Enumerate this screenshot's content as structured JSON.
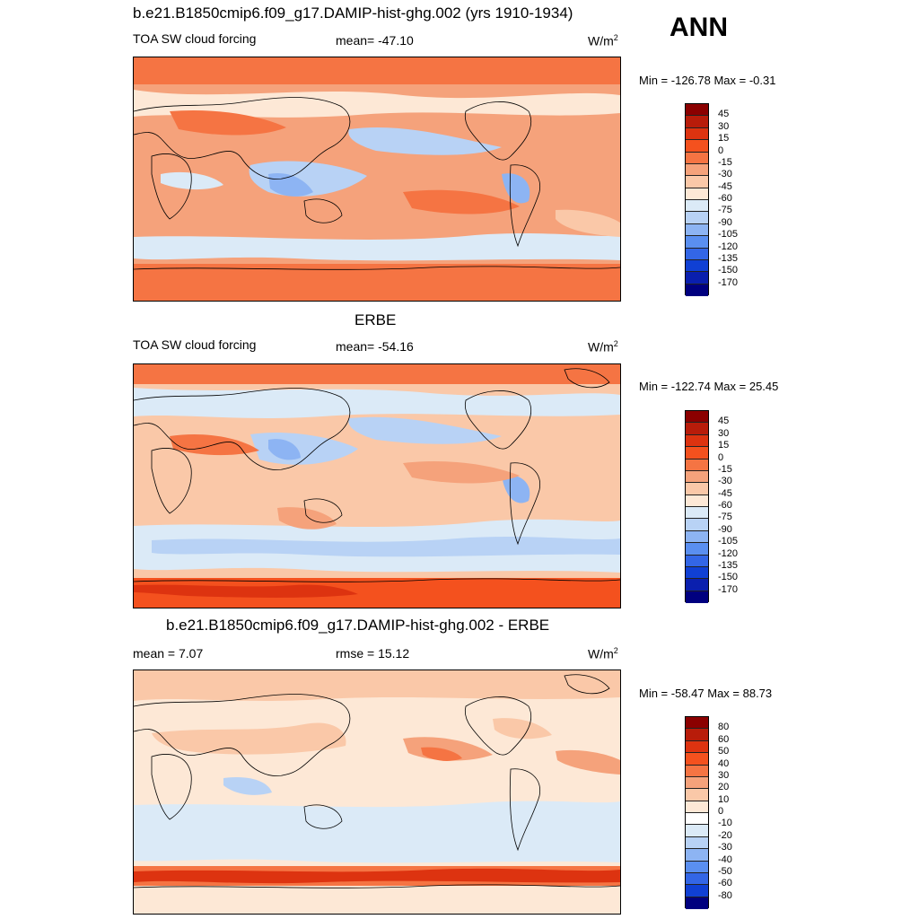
{
  "season": "ANN",
  "panels": [
    {
      "title": "b.e21.B1850cmip6.f09_g17.DAMIP-hist-ghg.002 (yrs 1910-1934)",
      "left": "TOA SW cloud forcing",
      "center": "mean= -47.10",
      "units": "W/m",
      "units_sup": "2",
      "minmax": "Min = -126.78 Max =  -0.31",
      "labels": [
        "45",
        "30",
        "15",
        "0",
        "-15",
        "-30",
        "-45",
        "-60",
        "-75",
        "-90",
        "-105",
        "-120",
        "-135",
        "-150",
        "-170"
      ],
      "colors": [
        "#8b0000",
        "#b81c0a",
        "#dd3310",
        "#f4511e",
        "#f57443",
        "#f5a27b",
        "#fac8a8",
        "#fde8d6",
        "#dbeaf7",
        "#b8d2f5",
        "#8db4f3",
        "#5a8ff0",
        "#3366e6",
        "#1040d4",
        "#0a1fae",
        "#00007f"
      ]
    },
    {
      "title": "ERBE",
      "left": "TOA SW cloud forcing",
      "center": "mean= -54.16",
      "units": "W/m",
      "units_sup": "2",
      "minmax": "Min = -122.74 Max =  25.45",
      "labels": [
        "45",
        "30",
        "15",
        "0",
        "-15",
        "-30",
        "-45",
        "-60",
        "-75",
        "-90",
        "-105",
        "-120",
        "-135",
        "-150",
        "-170"
      ],
      "colors": [
        "#8b0000",
        "#b81c0a",
        "#dd3310",
        "#f4511e",
        "#f57443",
        "#f5a27b",
        "#fac8a8",
        "#fde8d6",
        "#dbeaf7",
        "#b8d2f5",
        "#8db4f3",
        "#5a8ff0",
        "#3366e6",
        "#1040d4",
        "#0a1fae",
        "#00007f"
      ]
    },
    {
      "title": "b.e21.B1850cmip6.f09_g17.DAMIP-hist-ghg.002 - ERBE",
      "left": "mean =   7.07",
      "center": "rmse =  15.12",
      "units": "W/m",
      "units_sup": "2",
      "minmax": "Min = -58.47 Max =  88.73",
      "labels": [
        "80",
        "60",
        "50",
        "40",
        "30",
        "20",
        "10",
        "0",
        "-10",
        "-20",
        "-30",
        "-40",
        "-50",
        "-60",
        "-80"
      ],
      "colors": [
        "#8b0000",
        "#b81c0a",
        "#dd3310",
        "#f4511e",
        "#f57443",
        "#f5a27b",
        "#fac8a8",
        "#fde8d6",
        "#ffffff",
        "#dbeaf7",
        "#b8d2f5",
        "#8db4f3",
        "#5a8ff0",
        "#3366e6",
        "#1040d4",
        "#00007f"
      ]
    }
  ],
  "chart_data": [
    {
      "type": "heatmap",
      "title": "b.e21.B1850cmip6.f09_g17.DAMIP-hist-ghg.002 (yrs 1910-1934)",
      "subtitle": "TOA SW cloud forcing",
      "mean": -47.1,
      "units": "W/m2",
      "min": -126.78,
      "max": -0.31,
      "contour_levels": [
        -170,
        -150,
        -135,
        -120,
        -105,
        -90,
        -75,
        -60,
        -45,
        -30,
        -15,
        0,
        15,
        30,
        45
      ]
    },
    {
      "type": "heatmap",
      "title": "ERBE",
      "subtitle": "TOA SW cloud forcing",
      "mean": -54.16,
      "units": "W/m2",
      "min": -122.74,
      "max": 25.45,
      "contour_levels": [
        -170,
        -150,
        -135,
        -120,
        -105,
        -90,
        -75,
        -60,
        -45,
        -30,
        -15,
        0,
        15,
        30,
        45
      ]
    },
    {
      "type": "heatmap",
      "title": "b.e21.B1850cmip6.f09_g17.DAMIP-hist-ghg.002 - ERBE",
      "mean": 7.07,
      "rmse": 15.12,
      "units": "W/m2",
      "min": -58.47,
      "max": 88.73,
      "contour_levels": [
        -80,
        -60,
        -50,
        -40,
        -30,
        -20,
        -10,
        0,
        10,
        20,
        30,
        40,
        50,
        60,
        80
      ]
    }
  ]
}
